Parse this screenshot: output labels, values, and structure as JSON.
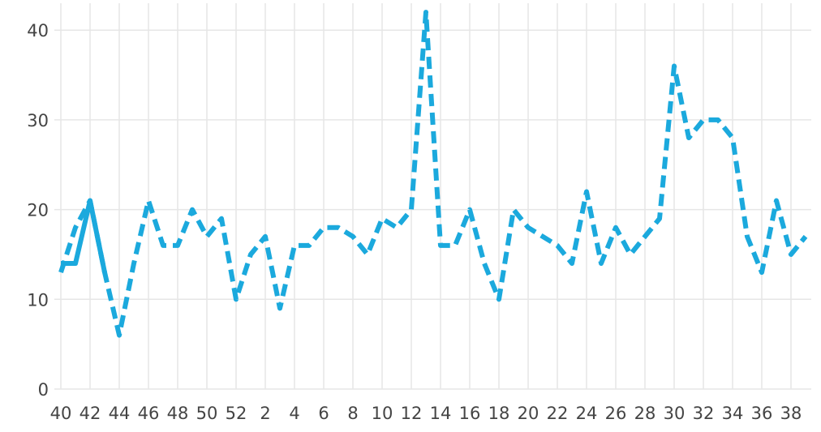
{
  "chart_data": {
    "type": "line",
    "categories": [
      "40",
      null,
      "42",
      null,
      "44",
      null,
      "46",
      null,
      "48",
      null,
      "50",
      null,
      "52",
      null,
      "2",
      null,
      "4",
      null,
      "6",
      null,
      "8",
      null,
      "10",
      null,
      "12",
      null,
      "14",
      null,
      "16",
      null,
      "18",
      null,
      "20",
      null,
      "22",
      null,
      "24",
      null,
      "26",
      null,
      "28",
      null,
      "30",
      null,
      "32",
      null,
      "34",
      null,
      "36",
      null,
      "38",
      null
    ],
    "series": [
      {
        "color": "#1ba9dd",
        "dash": true,
        "values": [
          13,
          18,
          21,
          13,
          6,
          14,
          21,
          16,
          16,
          20,
          17,
          19,
          10,
          15,
          17,
          9,
          16,
          16,
          18,
          18,
          17,
          15,
          19,
          18,
          20,
          42,
          16,
          16,
          20,
          14,
          10,
          20,
          18,
          17,
          16,
          14,
          22,
          14,
          18,
          15,
          17,
          19,
          36,
          28,
          30,
          30,
          28,
          17,
          13,
          21,
          15,
          17
        ]
      },
      {
        "color": "#1ba9dd",
        "dash": false,
        "values": [
          14,
          14,
          21,
          13,
          null,
          null,
          null,
          null,
          null,
          null,
          null,
          null,
          null,
          null,
          null,
          null,
          null,
          null,
          null,
          null,
          null,
          null,
          null,
          null,
          null,
          null,
          null,
          null,
          null,
          null,
          null,
          null,
          null,
          null,
          null,
          null,
          null,
          null,
          null,
          null,
          null,
          null,
          null,
          null,
          null,
          null,
          null,
          null,
          null,
          null,
          null,
          null
        ]
      }
    ],
    "ylim": [
      0,
      43
    ],
    "yticks": [
      0,
      10,
      20,
      30,
      40
    ],
    "grid": true
  }
}
